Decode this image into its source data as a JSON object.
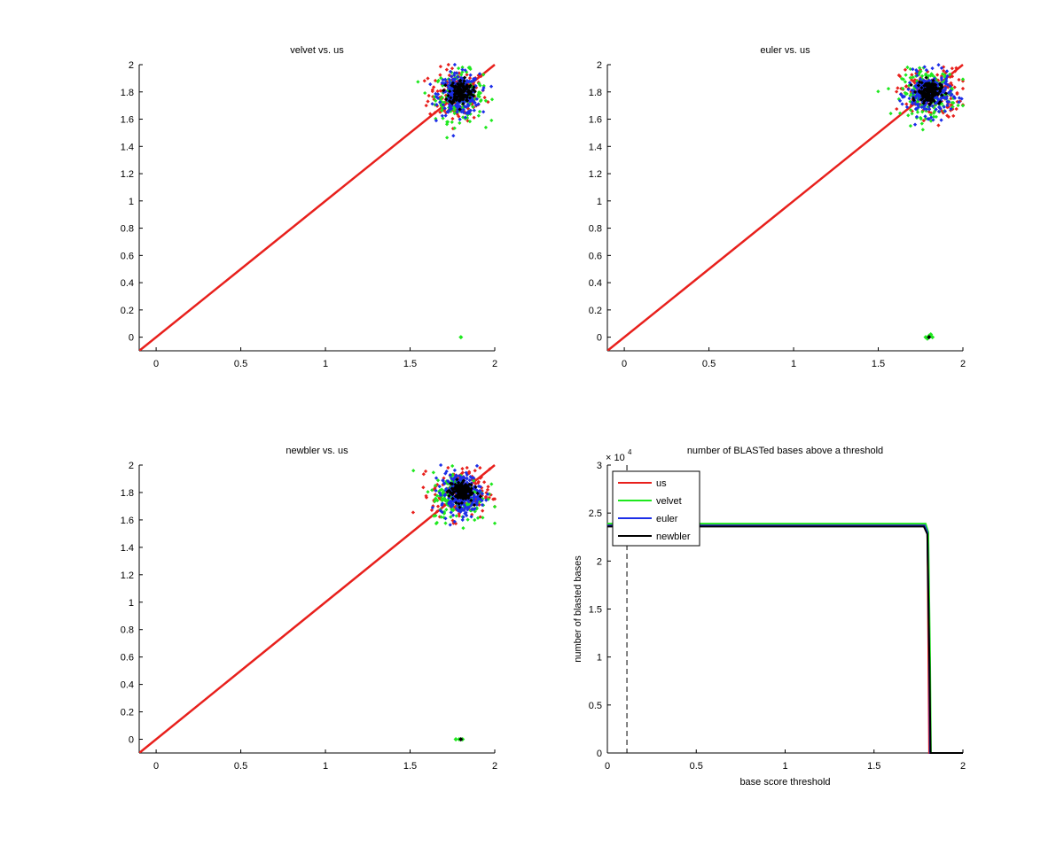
{
  "figure": {
    "background": "#ffffff"
  },
  "chart_data": [
    {
      "type": "scatter",
      "title": "velvet vs. us",
      "xlim": [
        -0.1,
        2
      ],
      "ylim": [
        -0.1,
        2
      ],
      "xticks": [
        0,
        0.5,
        1,
        1.5,
        2
      ],
      "xtick_labels": [
        "0",
        "0.5",
        "1",
        "1.5",
        "2"
      ],
      "yticks": [
        0,
        0.2,
        0.4,
        0.6,
        0.8,
        1,
        1.2,
        1.4,
        1.6,
        1.8,
        2
      ],
      "ytick_labels": [
        "0",
        "0.2",
        "0.4",
        "0.6",
        "0.8",
        "1",
        "1.2",
        "1.4",
        "1.6",
        "1.8",
        "2"
      ],
      "reference_line": {
        "from": [
          -0.1,
          -0.1
        ],
        "to": [
          2,
          2
        ],
        "color": "#e8201c"
      },
      "clusters": [
        {
          "name": "red",
          "color": "#e8201c",
          "cx": 1.78,
          "cy": 1.78,
          "sx": 0.085,
          "sy": 0.095,
          "n": 170
        },
        {
          "name": "green",
          "color": "#1ee81e",
          "cx": 1.79,
          "cy": 1.77,
          "sx": 0.07,
          "sy": 0.09,
          "n": 190
        },
        {
          "name": "blue",
          "color": "#1c2ee8",
          "cx": 1.79,
          "cy": 1.78,
          "sx": 0.06,
          "sy": 0.075,
          "n": 260
        },
        {
          "name": "black",
          "color": "#000000",
          "cx": 1.8,
          "cy": 1.8,
          "sx": 0.035,
          "sy": 0.045,
          "n": 140
        }
      ],
      "outliers": [
        {
          "x": 1.8,
          "y": 0.0,
          "color": "#1ee81e"
        }
      ]
    },
    {
      "type": "scatter",
      "title": "euler vs. us",
      "xlim": [
        -0.1,
        2
      ],
      "ylim": [
        -0.1,
        2
      ],
      "xticks": [
        0,
        0.5,
        1,
        1.5,
        2
      ],
      "xtick_labels": [
        "0",
        "0.5",
        "1",
        "1.5",
        "2"
      ],
      "yticks": [
        0,
        0.2,
        0.4,
        0.6,
        0.8,
        1,
        1.2,
        1.4,
        1.6,
        1.8,
        2
      ],
      "ytick_labels": [
        "0",
        "0.2",
        "0.4",
        "0.6",
        "0.8",
        "1",
        "1.2",
        "1.4",
        "1.6",
        "1.8",
        "2"
      ],
      "reference_line": {
        "from": [
          -0.1,
          -0.1
        ],
        "to": [
          2,
          2
        ],
        "color": "#e8201c"
      },
      "clusters": [
        {
          "name": "red",
          "color": "#e8201c",
          "cx": 1.81,
          "cy": 1.79,
          "sx": 0.09,
          "sy": 0.09,
          "n": 170
        },
        {
          "name": "green",
          "color": "#1ee81e",
          "cx": 1.8,
          "cy": 1.79,
          "sx": 0.08,
          "sy": 0.085,
          "n": 190
        },
        {
          "name": "blue",
          "color": "#1c2ee8",
          "cx": 1.8,
          "cy": 1.78,
          "sx": 0.065,
          "sy": 0.075,
          "n": 260
        },
        {
          "name": "black",
          "color": "#000000",
          "cx": 1.8,
          "cy": 1.8,
          "sx": 0.035,
          "sy": 0.04,
          "n": 140
        }
      ],
      "outliers": [
        {
          "x": 1.78,
          "y": 0.0,
          "color": "#1ee81e"
        },
        {
          "x": 1.8,
          "y": 0.01,
          "color": "#1ee81e"
        },
        {
          "x": 1.82,
          "y": 0.0,
          "color": "#1ee81e"
        },
        {
          "x": 1.79,
          "y": -0.01,
          "color": "#1ee81e"
        },
        {
          "x": 1.81,
          "y": 0.02,
          "color": "#1ee81e"
        },
        {
          "x": 1.8,
          "y": 0.0,
          "color": "#000000"
        }
      ]
    },
    {
      "type": "scatter",
      "title": "newbler vs. us",
      "xlim": [
        -0.1,
        2
      ],
      "ylim": [
        -0.1,
        2
      ],
      "xticks": [
        0,
        0.5,
        1,
        1.5,
        2
      ],
      "xtick_labels": [
        "0",
        "0.5",
        "1",
        "1.5",
        "2"
      ],
      "yticks": [
        0,
        0.2,
        0.4,
        0.6,
        0.8,
        1,
        1.2,
        1.4,
        1.6,
        1.8,
        2
      ],
      "ytick_labels": [
        "0",
        "0.2",
        "0.4",
        "0.6",
        "0.8",
        "1",
        "1.2",
        "1.4",
        "1.6",
        "1.8",
        "2"
      ],
      "reference_line": {
        "from": [
          -0.1,
          -0.1
        ],
        "to": [
          2,
          2
        ],
        "color": "#e8201c"
      },
      "clusters": [
        {
          "name": "red",
          "color": "#e8201c",
          "cx": 1.8,
          "cy": 1.79,
          "sx": 0.085,
          "sy": 0.09,
          "n": 170
        },
        {
          "name": "green",
          "color": "#1ee81e",
          "cx": 1.79,
          "cy": 1.77,
          "sx": 0.08,
          "sy": 0.09,
          "n": 190
        },
        {
          "name": "blue",
          "color": "#1c2ee8",
          "cx": 1.8,
          "cy": 1.79,
          "sx": 0.06,
          "sy": 0.075,
          "n": 260
        },
        {
          "name": "black",
          "color": "#000000",
          "cx": 1.8,
          "cy": 1.81,
          "sx": 0.035,
          "sy": 0.04,
          "n": 140
        }
      ],
      "outliers": [
        {
          "x": 1.77,
          "y": 0.0,
          "color": "#1ee81e"
        },
        {
          "x": 1.79,
          "y": 0.0,
          "color": "#1ee81e"
        },
        {
          "x": 1.81,
          "y": 0.0,
          "color": "#1ee81e"
        },
        {
          "x": 1.8,
          "y": 0.0,
          "color": "#000000"
        }
      ]
    },
    {
      "type": "line",
      "title": "number of BLASTed bases above a threshold",
      "xlabel": "base score threshold",
      "ylabel": "number of blasted bases",
      "y_exponent_base": "× 10",
      "y_exponent_power": "4",
      "xlim": [
        0,
        2
      ],
      "ylim": [
        0,
        3
      ],
      "xticks": [
        0,
        0.5,
        1,
        1.5,
        2
      ],
      "xtick_labels": [
        "0",
        "0.5",
        "1",
        "1.5",
        "2"
      ],
      "yticks": [
        0,
        0.5,
        1,
        1.5,
        2,
        2.5,
        3
      ],
      "ytick_labels": [
        "0",
        "0.5",
        "1",
        "1.5",
        "2",
        "2.5",
        "3"
      ],
      "vline": {
        "x": 0.11,
        "style": "dashed",
        "color": "#000000"
      },
      "legend": {
        "placement": "top-left"
      },
      "series": [
        {
          "name": "us",
          "color": "#e8201c",
          "x": [
            0,
            1.78,
            1.8,
            1.805,
            1.81,
            2
          ],
          "y": [
            2.38,
            2.38,
            2.3,
            1.2,
            0,
            0
          ]
        },
        {
          "name": "velvet",
          "color": "#1ee81e",
          "x": [
            0,
            1.79,
            1.805,
            1.815,
            1.82,
            2
          ],
          "y": [
            2.39,
            2.39,
            2.3,
            1.0,
            0,
            0
          ]
        },
        {
          "name": "euler",
          "color": "#1c2ee8",
          "x": [
            0,
            1.785,
            1.8,
            1.81,
            1.815,
            2
          ],
          "y": [
            2.37,
            2.37,
            2.3,
            1.1,
            0,
            0
          ]
        },
        {
          "name": "newbler",
          "color": "#000000",
          "x": [
            0,
            1.78,
            1.8,
            1.812,
            1.818,
            2
          ],
          "y": [
            2.36,
            2.36,
            2.28,
            0.9,
            0,
            0
          ]
        }
      ]
    }
  ]
}
